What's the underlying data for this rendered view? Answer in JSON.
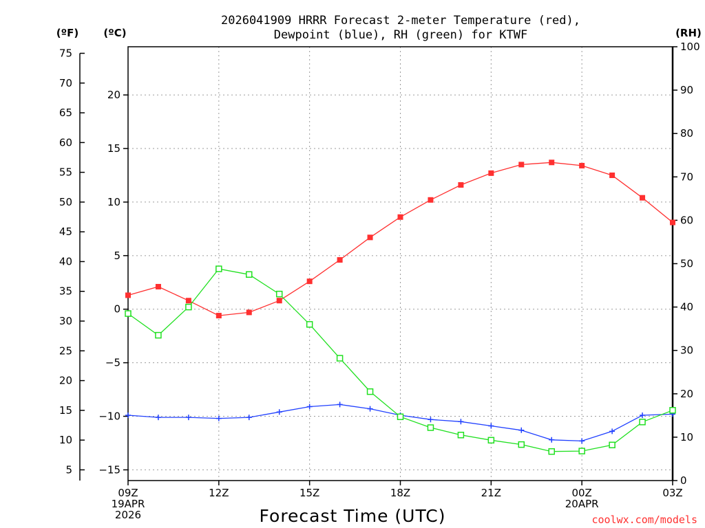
{
  "chart_data": {
    "type": "line",
    "title_line1": "2026041909 HRRR Forecast 2-meter Temperature (red),",
    "title_line2": "Dewpoint (blue), RH (green) for KTWF",
    "xlabel": "Forecast Time (UTC)",
    "credit": "coolwx.com/models",
    "units": {
      "fahrenheit": "(ºF)",
      "celsius": "(ºC)",
      "rh": "(RH)"
    },
    "x_hours": [
      0,
      1,
      2,
      3,
      4,
      5,
      6,
      7,
      8,
      9,
      10,
      11,
      12,
      13,
      14,
      15,
      16,
      17,
      18
    ],
    "xlim": [
      0,
      18
    ],
    "x_ticks": [
      {
        "hour": 0,
        "lines": [
          "09Z",
          "19APR",
          "2026"
        ]
      },
      {
        "hour": 3,
        "lines": [
          "12Z"
        ]
      },
      {
        "hour": 6,
        "lines": [
          "15Z"
        ]
      },
      {
        "hour": 9,
        "lines": [
          "18Z"
        ]
      },
      {
        "hour": 12,
        "lines": [
          "21Z"
        ]
      },
      {
        "hour": 15,
        "lines": [
          "00Z",
          "20APR"
        ]
      },
      {
        "hour": 18,
        "lines": [
          "03Z"
        ]
      }
    ],
    "celsius_axis": {
      "ylim": [
        -16,
        24.5
      ],
      "ticks": [
        20,
        15,
        10,
        5,
        0,
        -5,
        -10,
        -15
      ],
      "tick_labels": [
        "20",
        "15",
        "10",
        "5",
        "0",
        "−5",
        "−10",
        "−15"
      ]
    },
    "fahrenheit_axis": {
      "ticks": [
        75,
        70,
        65,
        60,
        55,
        50,
        45,
        40,
        35,
        30,
        25,
        20,
        15,
        10,
        5
      ],
      "tick_labels": [
        "75",
        "70",
        "65",
        "60",
        "55",
        "50",
        "45",
        "40",
        "35",
        "30",
        "25",
        "20",
        "15",
        "10",
        "5"
      ]
    },
    "rh_axis": {
      "ylim": [
        0,
        100
      ],
      "ticks": [
        100,
        90,
        80,
        70,
        60,
        50,
        40,
        30,
        20,
        10,
        0
      ],
      "tick_labels": [
        "100",
        "90",
        "80",
        "70",
        "60",
        "50",
        "40",
        "30",
        "20",
        "10",
        "0"
      ]
    },
    "series": [
      {
        "name": "2-meter Temperature",
        "axis": "celsius",
        "color": "#ff3030",
        "marker": "filled-square",
        "values": [
          1.3,
          2.1,
          0.8,
          -0.6,
          -0.3,
          0.8,
          2.6,
          4.6,
          6.7,
          8.6,
          10.2,
          11.6,
          12.7,
          13.5,
          13.7,
          13.4,
          12.5,
          10.4,
          8.1
        ]
      },
      {
        "name": "Dewpoint",
        "axis": "celsius",
        "color": "#2040ff",
        "marker": "plus",
        "values": [
          -9.9,
          -10.1,
          -10.1,
          -10.2,
          -10.1,
          -9.6,
          -9.1,
          -8.9,
          -9.3,
          -9.9,
          -10.3,
          -10.5,
          -10.9,
          -11.3,
          -12.2,
          -12.3,
          -11.4,
          -9.9,
          -9.8
        ]
      },
      {
        "name": "RH",
        "axis": "rh",
        "color": "#20e020",
        "marker": "open-square",
        "values": [
          38.5,
          33.5,
          40,
          48.8,
          47.5,
          43,
          36,
          28.2,
          20.5,
          14.7,
          12.2,
          10.5,
          9.3,
          8.3,
          6.7,
          6.8,
          8.2,
          13.5,
          16.2
        ]
      }
    ]
  }
}
